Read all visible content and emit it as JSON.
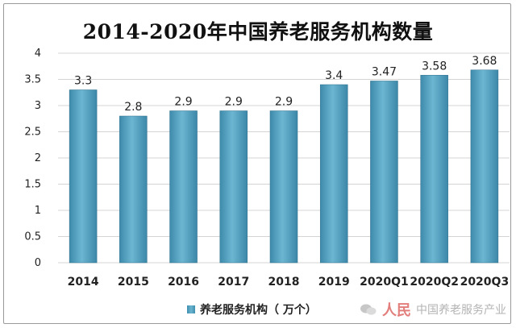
{
  "chart_data": {
    "type": "bar",
    "title": "2014-2020年中国养老服务机构数量",
    "categories": [
      "2014",
      "2015",
      "2016",
      "2017",
      "2018",
      "2019",
      "2020Q1",
      "2020Q2",
      "2020Q3"
    ],
    "series": [
      {
        "name": "养老服务机构（万个）",
        "values": [
          3.3,
          2.8,
          2.9,
          2.9,
          2.9,
          3.4,
          3.47,
          3.58,
          3.68
        ],
        "labels": [
          "3.3",
          "2.8",
          "2.9",
          "2.9",
          "2.9",
          "3.4",
          "3.47",
          "3.58",
          "3.68"
        ]
      }
    ],
    "yticks": [
      "0",
      "0.5",
      "1",
      "1.5",
      "2",
      "2.5",
      "3",
      "3.5",
      "4"
    ],
    "ylim": [
      0,
      4
    ],
    "grid": true,
    "legend_position": "bottom",
    "bar_color": "#5aa6c6"
  },
  "legend": {
    "label": "养老服务机构（ 万个）"
  },
  "watermark": {
    "logo_text": "人民",
    "text": "中国养老服务产业"
  }
}
